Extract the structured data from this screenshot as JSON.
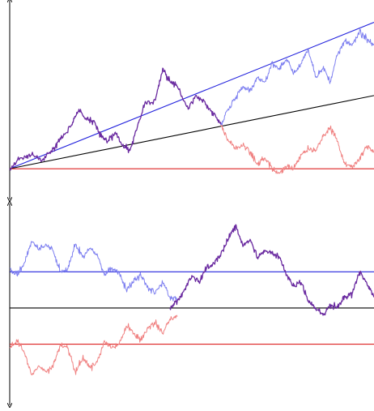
{
  "chart_data": [
    {
      "type": "line",
      "title": "",
      "xlabel": "",
      "ylabel": "",
      "xlim": [
        0,
        1
      ],
      "ylim": [
        -0.3,
        1.8
      ],
      "grid": false,
      "legend": "none",
      "colors": {
        "blue": "#2222dd",
        "black": "#000000",
        "red": "#dd2222",
        "blue_path": "#7d7ff0",
        "red_path": "#f08282",
        "overlap_path": "#6a2aa0"
      },
      "reference_lines": [
        {
          "color": "blue",
          "x": [
            0,
            1
          ],
          "y": [
            0,
            1.6
          ]
        },
        {
          "color": "black",
          "x": [
            0,
            1
          ],
          "y": [
            0,
            0.8
          ]
        },
        {
          "color": "red",
          "x": [
            0,
            1
          ],
          "y": [
            0,
            0
          ]
        }
      ],
      "paths": [
        {
          "color": "overlap_path",
          "x": [
            0,
            0.03,
            0.06,
            0.09,
            0.12,
            0.14,
            0.17,
            0.19,
            0.21,
            0.23,
            0.25,
            0.27,
            0.29,
            0.31,
            0.33,
            0.35,
            0.37,
            0.4,
            0.42,
            0.44,
            0.46,
            0.49,
            0.51,
            0.54,
            0.56,
            0.58
          ],
          "y": [
            0,
            0.12,
            0.15,
            0.1,
            0.22,
            0.32,
            0.48,
            0.65,
            0.55,
            0.52,
            0.35,
            0.3,
            0.4,
            0.25,
            0.2,
            0.45,
            0.7,
            0.75,
            1.1,
            0.95,
            0.9,
            0.65,
            0.8,
            0.7,
            0.6,
            0.48
          ]
        },
        {
          "color": "blue_path",
          "x": [
            0.58,
            0.6,
            0.62,
            0.64,
            0.66,
            0.68,
            0.7,
            0.72,
            0.74,
            0.76,
            0.78,
            0.8,
            0.82,
            0.84,
            0.86,
            0.88,
            0.9,
            0.92,
            0.94,
            0.96,
            0.98,
            1.0
          ],
          "y": [
            0.48,
            0.65,
            0.78,
            0.9,
            0.85,
            1.0,
            0.95,
            1.15,
            1.1,
            1.2,
            1.05,
            1.15,
            1.3,
            1.0,
            1.1,
            0.95,
            1.25,
            1.4,
            1.35,
            1.5,
            1.42,
            1.35
          ]
        },
        {
          "color": "red_path",
          "x": [
            0.58,
            0.6,
            0.62,
            0.64,
            0.66,
            0.68,
            0.7,
            0.72,
            0.74,
            0.76,
            0.78,
            0.8,
            0.82,
            0.84,
            0.86,
            0.88,
            0.9,
            0.92,
            0.94,
            0.96,
            0.98,
            1.0
          ],
          "y": [
            0.48,
            0.31,
            0.22,
            0.25,
            0.18,
            0.05,
            0.12,
            0.0,
            -0.05,
            0.02,
            0.0,
            0.15,
            0.22,
            0.2,
            0.35,
            0.45,
            0.3,
            0.05,
            0.02,
            0.1,
            0.25,
            0.18
          ]
        }
      ]
    },
    {
      "type": "line",
      "title": "",
      "xlabel": "",
      "ylabel": "",
      "xlim": [
        0,
        1
      ],
      "ylim": [
        -1.3,
        1.4
      ],
      "grid": false,
      "legend": "none",
      "colors": {
        "blue": "#2222dd",
        "black": "#000000",
        "red": "#dd2222",
        "blue_path": "#7d7ff0",
        "red_path": "#f08282",
        "overlap_path": "#6a2aa0"
      },
      "reference_lines": [
        {
          "color": "blue",
          "x": [
            0,
            1
          ],
          "y": [
            0.5,
            0.5
          ]
        },
        {
          "color": "black",
          "x": [
            0,
            1
          ],
          "y": [
            0,
            0
          ]
        },
        {
          "color": "red",
          "x": [
            0,
            1
          ],
          "y": [
            -0.5,
            -0.5
          ]
        }
      ],
      "paths": [
        {
          "color": "blue_path",
          "x": [
            0,
            0.02,
            0.04,
            0.06,
            0.08,
            0.1,
            0.12,
            0.14,
            0.16,
            0.18,
            0.2,
            0.22,
            0.24,
            0.26,
            0.28,
            0.3,
            0.32,
            0.34,
            0.36,
            0.38,
            0.4,
            0.42,
            0.44,
            0.46
          ],
          "y": [
            0.55,
            0.45,
            0.62,
            0.92,
            0.8,
            0.88,
            0.78,
            0.5,
            0.55,
            0.88,
            0.7,
            0.82,
            0.75,
            0.45,
            0.55,
            0.5,
            0.25,
            0.35,
            0.45,
            0.28,
            0.2,
            0.35,
            0.15,
            0.12
          ]
        },
        {
          "color": "red_path",
          "x": [
            0,
            0.02,
            0.04,
            0.06,
            0.08,
            0.1,
            0.12,
            0.14,
            0.16,
            0.18,
            0.2,
            0.22,
            0.24,
            0.26,
            0.28,
            0.3,
            0.32,
            0.34,
            0.36,
            0.38,
            0.4,
            0.42,
            0.44,
            0.46
          ],
          "y": [
            -0.55,
            -0.45,
            -0.62,
            -0.92,
            -0.8,
            -0.88,
            -0.78,
            -0.5,
            -0.55,
            -0.88,
            -0.7,
            -0.82,
            -0.75,
            -0.45,
            -0.55,
            -0.5,
            -0.25,
            -0.35,
            -0.45,
            -0.28,
            -0.2,
            -0.35,
            -0.15,
            -0.12
          ]
        },
        {
          "color": "overlap_path",
          "x": [
            0.44,
            0.46,
            0.48,
            0.5,
            0.52,
            0.54,
            0.56,
            0.58,
            0.6,
            0.62,
            0.64,
            0.66,
            0.68,
            0.7,
            0.72,
            0.74,
            0.76,
            0.78,
            0.8,
            0.82,
            0.84,
            0.86,
            0.88,
            0.9,
            0.92,
            0.94,
            0.96,
            0.98,
            1.0
          ],
          "y": [
            0.0,
            0.1,
            0.25,
            0.45,
            0.35,
            0.55,
            0.62,
            0.75,
            0.95,
            1.15,
            0.85,
            0.95,
            0.7,
            0.8,
            0.75,
            0.7,
            0.45,
            0.3,
            0.35,
            0.1,
            0.0,
            -0.1,
            0.05,
            0.0,
            0.15,
            0.2,
            0.5,
            0.35,
            0.15
          ]
        }
      ]
    }
  ]
}
